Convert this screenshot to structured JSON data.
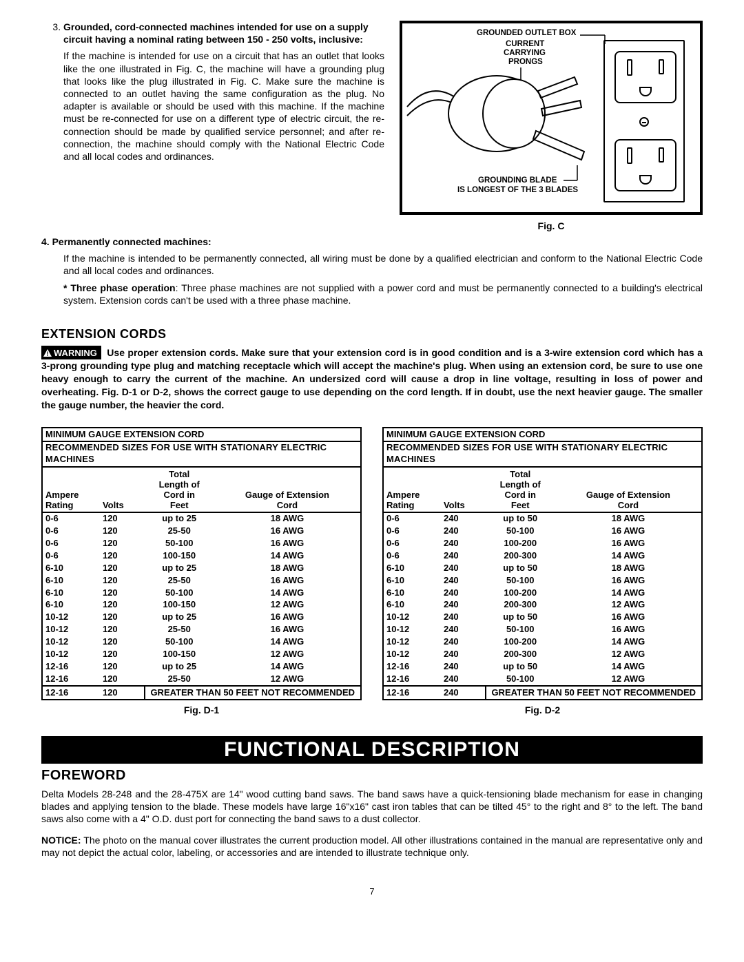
{
  "section3": {
    "num": "3.",
    "lead": "Grounded, cord-connected machines intended for use on a supply circuit having a nominal rating between 150 - 250 volts, inclusive:",
    "body": "If the machine is intended for use on a circuit that has an outlet that looks like the one illustrated in Fig. C, the machine will have a grounding plug that looks like the plug illustrated in Fig. C. Make sure the machine is connected to an outlet having the same configuration as the plug. No adapter is available or should be used with this machine. If the machine must be re-connected for use on a different type of electric circuit, the re-connection should be made by qualified service personnel; and after re-connection, the machine should comply with the National Electric Code and all local codes and ordinances."
  },
  "figC": {
    "caption": "Fig. C",
    "labels": {
      "outletBox": "GROUNDED OUTLET BOX",
      "prongs1": "CURRENT",
      "prongs2": "CARRYING",
      "prongs3": "PRONGS",
      "blade1": "GROUNDING BLADE",
      "blade2": "IS LONGEST OF THE 3 BLADES"
    }
  },
  "section4": {
    "num": "4.",
    "lead": "Permanently connected machines:",
    "p1": "If the machine is intended to be permanently connected, all wiring must be done by a qualified electrician and conform to the National Electric Code and all local codes and ordinances.",
    "p2lead": "* Three phase operation",
    "p2": ": Three phase machines are not supplied with a power cord and must be permanently connected to a building's electrical system. Extension cords can't be used with a three phase machine."
  },
  "extCords": {
    "title": "EXTENSION CORDS",
    "warningLabel": "WARNING",
    "warningBody": "Use proper extension cords. Make sure that your extension cord is in good condition and is a 3-wire extension cord which has a 3-prong grounding type plug and matching receptacle which will accept the machine's plug. When using an extension cord, be sure to use one heavy enough to carry the current of the machine. An undersized cord will cause a drop in line voltage, resulting in loss of power and overheating. Fig. D-1 or D-2, shows the correct gauge to use depending on the cord length. If in doubt, use the next heavier gauge. The smaller the gauge number, the heavier the cord."
  },
  "tables": {
    "title": "MINIMUM GAUGE EXTENSION CORD",
    "sub": "RECOMMENDED SIZES FOR USE WITH STATIONARY ELECTRIC MACHINES",
    "headers": {
      "amp1": "Ampere",
      "amp2": "Rating",
      "volts": "Volts",
      "len1": "Total",
      "len2": "Length of",
      "len3": "Cord in",
      "len4": "Feet",
      "g1": "Gauge of Extension",
      "g2": "Cord"
    },
    "notRec": "GREATER THAN 50 FEET NOT RECOMMENDED",
    "d1": {
      "caption": "Fig. D-1",
      "rows": [
        [
          "0-6",
          "120",
          "up to 25",
          "18 AWG"
        ],
        [
          "0-6",
          "120",
          "25-50",
          "16 AWG"
        ],
        [
          "0-6",
          "120",
          "50-100",
          "16 AWG"
        ],
        [
          "0-6",
          "120",
          "100-150",
          "14 AWG"
        ],
        [
          "6-10",
          "120",
          "up to 25",
          "18 AWG"
        ],
        [
          "6-10",
          "120",
          "25-50",
          "16 AWG"
        ],
        [
          "6-10",
          "120",
          "50-100",
          "14 AWG"
        ],
        [
          "6-10",
          "120",
          "100-150",
          "12 AWG"
        ],
        [
          "10-12",
          "120",
          "up to 25",
          "16 AWG"
        ],
        [
          "10-12",
          "120",
          "25-50",
          "16 AWG"
        ],
        [
          "10-12",
          "120",
          "50-100",
          "14 AWG"
        ],
        [
          "10-12",
          "120",
          "100-150",
          "12 AWG"
        ],
        [
          "12-16",
          "120",
          "up to 25",
          "14 AWG"
        ],
        [
          "12-16",
          "120",
          "25-50",
          "12 AWG"
        ]
      ],
      "lastRow": [
        "12-16",
        "120"
      ]
    },
    "d2": {
      "caption": "Fig. D-2",
      "rows": [
        [
          "0-6",
          "240",
          "up to 50",
          "18 AWG"
        ],
        [
          "0-6",
          "240",
          "50-100",
          "16 AWG"
        ],
        [
          "0-6",
          "240",
          "100-200",
          "16 AWG"
        ],
        [
          "0-6",
          "240",
          "200-300",
          "14 AWG"
        ],
        [
          "6-10",
          "240",
          "up to 50",
          "18 AWG"
        ],
        [
          "6-10",
          "240",
          "50-100",
          "16 AWG"
        ],
        [
          "6-10",
          "240",
          "100-200",
          "14 AWG"
        ],
        [
          "6-10",
          "240",
          "200-300",
          "12 AWG"
        ],
        [
          "10-12",
          "240",
          "up to 50",
          "16 AWG"
        ],
        [
          "10-12",
          "240",
          "50-100",
          "16 AWG"
        ],
        [
          "10-12",
          "240",
          "100-200",
          "14 AWG"
        ],
        [
          "10-12",
          "240",
          "200-300",
          "12 AWG"
        ],
        [
          "12-16",
          "240",
          "up to 50",
          "14 AWG"
        ],
        [
          "12-16",
          "240",
          "50-100",
          "12 AWG"
        ]
      ],
      "lastRow": [
        "12-16",
        "240"
      ]
    }
  },
  "banner": "FUNCTIONAL DESCRIPTION",
  "foreword": {
    "title": "FOREWORD",
    "p1": "Delta Models 28-248 and the 28-475X are 14\" wood cutting band saws. The band saws have a quick-tensioning blade mechanism for ease in changing blades and applying tension to the blade. These models have large 16\"x16\" cast iron tables that can be tilted 45° to the right and 8° to the left. The band saws also come with a 4\" O.D. dust port for connecting the band saws to a dust collector.",
    "p2lead": "NOTICE:",
    "p2": " The photo on the manual cover illustrates the current production model. All other illustrations contained in the manual are representative only and may not depict the actual color, labeling, or accessories and are intended to illustrate technique only."
  },
  "pageNum": "7"
}
